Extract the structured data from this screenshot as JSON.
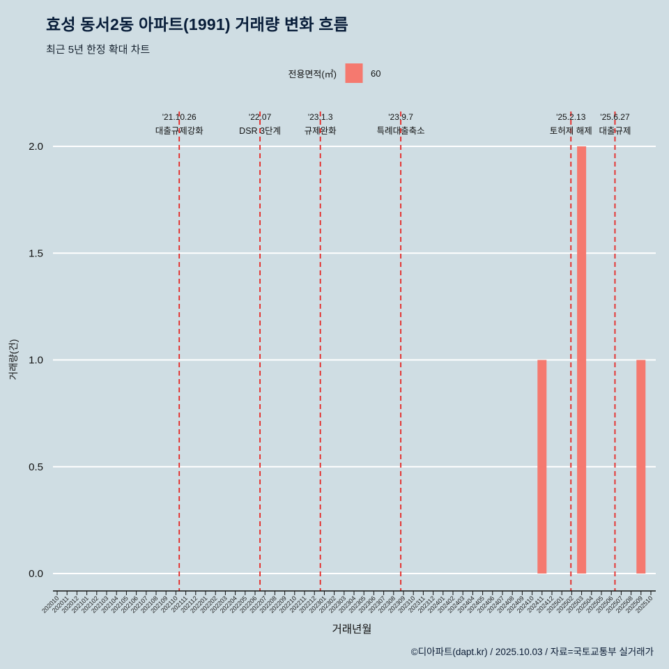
{
  "header": {
    "title": "효성 동서2동 아파트(1991) 거래량 변화 흐름",
    "subtitle": "최근 5년 한정 확대 차트"
  },
  "legend": {
    "label": "전용면적(㎡)",
    "value": "60",
    "swatch_color": "#f5796f"
  },
  "footer": {
    "credit": "©디아파트(dapt.kr) / 2025.10.03 / 자료=국토교통부 실거래가"
  },
  "chart_data": {
    "type": "bar",
    "title": "효성 동서2동 아파트(1991) 거래량 변화 흐름",
    "xlabel": "거래년월",
    "ylabel": "거래량(건)",
    "ylim": [
      0,
      2.0
    ],
    "yticks": [
      0.0,
      0.5,
      1.0,
      1.5,
      2.0
    ],
    "grid": true,
    "bar_color": "#f5796f",
    "annotation_color": "#e62421",
    "categories": [
      "202010",
      "202011",
      "202012",
      "202101",
      "202102",
      "202103",
      "202104",
      "202105",
      "202106",
      "202107",
      "202108",
      "202109",
      "202110",
      "202111",
      "202112",
      "202201",
      "202202",
      "202203",
      "202204",
      "202205",
      "202206",
      "202207",
      "202208",
      "202209",
      "202210",
      "202211",
      "202212",
      "202301",
      "202302",
      "202303",
      "202304",
      "202305",
      "202306",
      "202307",
      "202308",
      "202309",
      "202310",
      "202311",
      "202312",
      "202401",
      "202402",
      "202403",
      "202404",
      "202405",
      "202406",
      "202407",
      "202408",
      "202409",
      "202410",
      "202411",
      "202412",
      "202501",
      "202502",
      "202503",
      "202504",
      "202505",
      "202506",
      "202507",
      "202508",
      "202509",
      "202510"
    ],
    "values": [
      0,
      0,
      0,
      0,
      0,
      0,
      0,
      0,
      0,
      0,
      0,
      0,
      0,
      0,
      0,
      0,
      0,
      0,
      0,
      0,
      0,
      0,
      0,
      0,
      0,
      0,
      0,
      0,
      0,
      0,
      0,
      0,
      0,
      0,
      0,
      0,
      0,
      0,
      0,
      0,
      0,
      0,
      0,
      0,
      0,
      0,
      0,
      0,
      0,
      1,
      0,
      0,
      0,
      2,
      0,
      0,
      0,
      0,
      0,
      1,
      0
    ],
    "annotations": [
      {
        "month": "202110",
        "day": 26,
        "date_label": "'21.10.26",
        "text": "대출규제강화"
      },
      {
        "month": "202207",
        "day": null,
        "date_label": "'22.07",
        "text": "DSR 3단계"
      },
      {
        "month": "202301",
        "day": 3,
        "date_label": "'23.1.3",
        "text": "규제완화"
      },
      {
        "month": "202309",
        "day": 7,
        "date_label": "'23.9.7",
        "text": "특례대출축소"
      },
      {
        "month": "202502",
        "day": 13,
        "date_label": "'25.2.13",
        "text": "토허제 해제"
      },
      {
        "month": "202506",
        "day": 27,
        "date_label": "'25.6.27",
        "text": "대출규제"
      }
    ]
  }
}
